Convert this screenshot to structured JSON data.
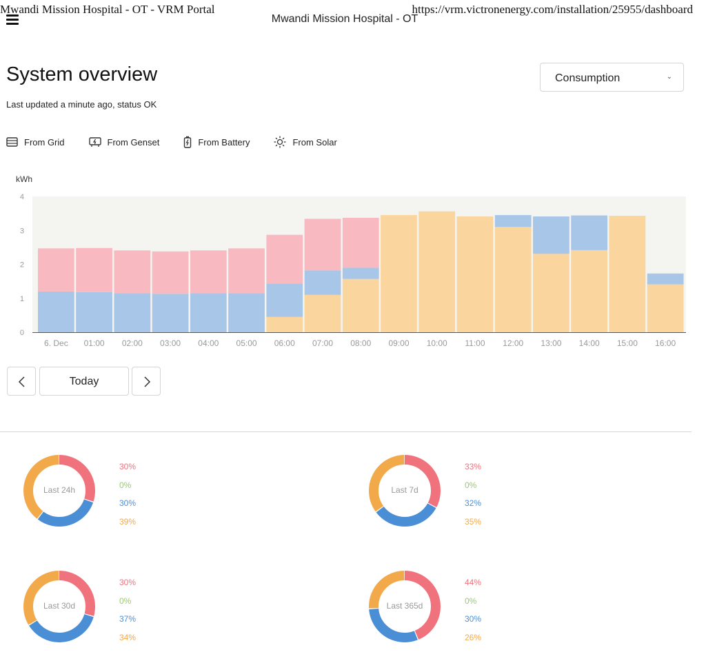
{
  "print_header": {
    "title": "Mwandi Mission Hospital - OT - VRM Portal",
    "url": "https://vrm.victronenergy.com/installation/25955/dashboard"
  },
  "header": {
    "site_name": "Mwandi Mission Hospital - OT"
  },
  "page": {
    "title": "System overview",
    "status": "Last updated a minute ago, status OK"
  },
  "view_select": {
    "selected": "Consumption"
  },
  "legend": [
    {
      "label": "From Grid",
      "icon": "grid-icon"
    },
    {
      "label": "From Genset",
      "icon": "genset-icon"
    },
    {
      "label": "From Battery",
      "icon": "battery-icon"
    },
    {
      "label": "From Solar",
      "icon": "solar-icon"
    }
  ],
  "colors": {
    "grid": "#f9b9c0",
    "battery": "#a7c6e8",
    "solar": "#fbd59e",
    "plot_bg": "#f4f4f1",
    "grid_donut": "#f0727c",
    "genset_donut": "#9cc77a",
    "battery_donut": "#4a8fd6",
    "solar_donut": "#f2a94a"
  },
  "chart_data": {
    "type": "bar",
    "stacked": true,
    "ylabel": "kWh",
    "ylim": [
      0,
      4
    ],
    "yticks": [
      0,
      1,
      2,
      3,
      4
    ],
    "categories": [
      "6. Dec",
      "01:00",
      "02:00",
      "03:00",
      "04:00",
      "05:00",
      "06:00",
      "07:00",
      "08:00",
      "09:00",
      "10:00",
      "11:00",
      "12:00",
      "13:00",
      "14:00",
      "15:00",
      "16:00"
    ],
    "series": [
      {
        "name": "From Solar",
        "values": [
          0,
          0,
          0,
          0,
          0,
          0,
          0.45,
          1.1,
          1.57,
          3.45,
          3.56,
          3.41,
          3.1,
          2.31,
          2.42,
          3.43,
          1.41
        ]
      },
      {
        "name": "From Battery",
        "values": [
          1.2,
          1.18,
          1.15,
          1.13,
          1.15,
          1.15,
          0.98,
          0.72,
          0.33,
          0,
          0,
          0,
          0.35,
          1.1,
          1.02,
          0,
          0.32
        ]
      },
      {
        "name": "From Grid",
        "values": [
          1.27,
          1.3,
          1.26,
          1.25,
          1.26,
          1.32,
          1.44,
          1.52,
          1.47,
          0,
          0,
          0,
          0,
          0,
          0,
          0,
          0
        ]
      }
    ],
    "grid": false,
    "legend": "top-left"
  },
  "navigation": {
    "today_label": "Today"
  },
  "donuts": [
    {
      "label": "Last 24h",
      "grid": 30,
      "genset": 0,
      "battery": 30,
      "solar": 39,
      "texts": [
        "30%",
        "0%",
        "30%",
        "39%"
      ]
    },
    {
      "label": "Last 7d",
      "grid": 33,
      "genset": 0,
      "battery": 32,
      "solar": 35,
      "texts": [
        "33%",
        "0%",
        "32%",
        "35%"
      ]
    },
    {
      "label": "Last 30d",
      "grid": 30,
      "genset": 0,
      "battery": 37,
      "solar": 34,
      "texts": [
        "30%",
        "0%",
        "37%",
        "34%"
      ]
    },
    {
      "label": "Last 365d",
      "grid": 44,
      "genset": 0,
      "battery": 30,
      "solar": 26,
      "texts": [
        "44%",
        "0%",
        "30%",
        "26%"
      ]
    }
  ]
}
